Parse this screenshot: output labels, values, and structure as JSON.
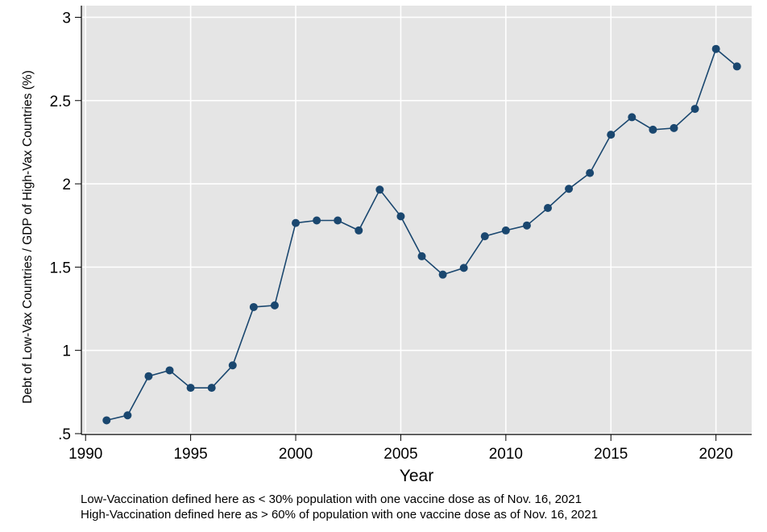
{
  "chart_data": {
    "type": "line",
    "title": "",
    "xlabel": "Year",
    "ylabel": "Debt of Low-Vax Countries / GDP of High-Vax Countries (%)",
    "xlim": [
      1989.8,
      2021.7
    ],
    "ylim": [
      0.495,
      3.07
    ],
    "x_ticks": [
      1990,
      1995,
      2000,
      2005,
      2010,
      2015,
      2020
    ],
    "x_tick_labels": [
      "1990",
      "1995",
      "2000",
      "2005",
      "2010",
      "2015",
      "2020"
    ],
    "y_ticks": [
      0.5,
      1,
      1.5,
      2,
      2.5,
      3
    ],
    "y_tick_labels": [
      ".5",
      "1",
      "1.5",
      "2",
      "2.5",
      "3"
    ],
    "grid": true,
    "colors": {
      "series": "#1a476f",
      "plot_background": "#e5e5e5",
      "grid": "#ffffff"
    },
    "series": [
      {
        "x": [
          1991,
          1992,
          1993,
          1994,
          1995,
          1996,
          1997,
          1998,
          1999,
          2000,
          2001,
          2002,
          2003,
          2004,
          2005,
          2006,
          2007,
          2008,
          2009,
          2010,
          2011,
          2012,
          2013,
          2014,
          2015,
          2016,
          2017,
          2018,
          2019,
          2020,
          2021
        ],
        "values": [
          0.58,
          0.61,
          0.845,
          0.88,
          0.775,
          0.775,
          0.91,
          1.26,
          1.27,
          1.765,
          1.78,
          1.78,
          1.72,
          1.965,
          1.805,
          1.565,
          1.455,
          1.495,
          1.685,
          1.72,
          1.75,
          1.855,
          1.97,
          2.065,
          2.295,
          2.4,
          2.325,
          2.335,
          2.45,
          2.81,
          2.705
        ]
      }
    ]
  },
  "notes": [
    "Low-Vaccination defined here as < 30% population with one vaccine dose as of Nov. 16, 2021",
    "High-Vaccination defined here as > 60% of population with one vaccine dose as of Nov. 16, 2021"
  ]
}
